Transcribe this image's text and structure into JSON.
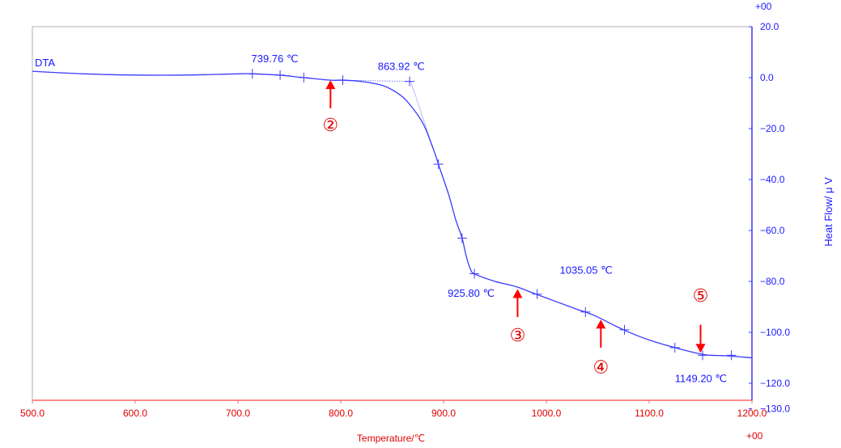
{
  "chart_data": {
    "type": "line",
    "series_label": "DTA",
    "xlabel": "Temperature/℃",
    "ylabel": "Heat Flow/ μ V",
    "x_exponent": "+00",
    "y_exponent": "+00",
    "xlim": [
      500,
      1200
    ],
    "ylim": [
      -130,
      20
    ],
    "xticks": [
      {
        "v": 500,
        "label": "500.0"
      },
      {
        "v": 600,
        "label": "600.0"
      },
      {
        "v": 700,
        "label": "700.0"
      },
      {
        "v": 800,
        "label": "800.0"
      },
      {
        "v": 900,
        "label": "900.0"
      },
      {
        "v": 1000,
        "label": "1000.0"
      },
      {
        "v": 1100,
        "label": "1100.0"
      },
      {
        "v": 1200,
        "label": "1200.0"
      }
    ],
    "yticks": [
      {
        "v": 20,
        "label": "20.0"
      },
      {
        "v": 0,
        "label": "0.0"
      },
      {
        "v": -20,
        "label": "−20.0"
      },
      {
        "v": -40,
        "label": "−40.0"
      },
      {
        "v": -60,
        "label": "−60.0"
      },
      {
        "v": -80,
        "label": "−80.0"
      },
      {
        "v": -100,
        "label": "−100.0"
      },
      {
        "v": -120,
        "label": "−120.0"
      },
      {
        "v": -130,
        "label": "−130.0"
      }
    ],
    "grid": false,
    "colors": {
      "axis_left_bottom": "#ff6666",
      "frame": "#b0b0b0",
      "curve": "#3a3aff",
      "arrow": "#ff0000"
    },
    "series": [
      {
        "x": [
          500,
          550,
          600,
          650,
          700,
          714,
          740,
          764,
          790,
          802,
          820,
          840,
          855,
          866,
          880,
          890,
          895,
          905,
          912,
          918,
          922,
          926,
          930,
          950,
          970,
          990,
          1010,
          1030,
          1038,
          1050,
          1075,
          1100,
          1125,
          1150,
          1160,
          1175,
          1200
        ],
        "y": [
          2.5,
          1.5,
          1.0,
          1.0,
          1.5,
          1.5,
          1.0,
          0,
          -1.0,
          -1.0,
          -1.5,
          -3,
          -6,
          -10,
          -18,
          -28,
          -34,
          -46,
          -56,
          -63,
          -70,
          -75,
          -77,
          -80,
          -82,
          -85,
          -88,
          -91,
          -92,
          -94,
          -99,
          -103,
          -106,
          -108.5,
          -109,
          -109.2,
          -110
        ]
      }
    ],
    "tick_marks": [
      {
        "x": 714,
        "y": 1.5
      },
      {
        "x": 741,
        "y": 1.0
      },
      {
        "x": 764,
        "y": 0
      },
      {
        "x": 802,
        "y": -1.0
      },
      {
        "x": 867,
        "y": -1.5
      },
      {
        "x": 895,
        "y": -34
      },
      {
        "x": 918,
        "y": -63
      },
      {
        "x": 930,
        "y": -77
      },
      {
        "x": 991,
        "y": -85
      },
      {
        "x": 1038,
        "y": -92
      },
      {
        "x": 1076,
        "y": -99
      },
      {
        "x": 1125,
        "y": -106
      },
      {
        "x": 1152,
        "y": -109
      },
      {
        "x": 1180,
        "y": -109
      }
    ],
    "baseline": {
      "x": [
        800,
        868
      ],
      "y": [
        -1.0,
        -1.5
      ]
    },
    "tangent": {
      "x": [
        868,
        895
      ],
      "y": [
        -1.5,
        -34
      ]
    },
    "annotations": [
      {
        "text": "739.76 ℃",
        "x": 713,
        "y": 6
      },
      {
        "text": "863.92 ℃",
        "x": 836,
        "y": 3
      },
      {
        "text": "925.80 ℃",
        "x": 904,
        "y": -86
      },
      {
        "text": "1035.05 ℃",
        "x": 1013,
        "y": -77
      },
      {
        "text": "1149.20 ℃",
        "x": 1125,
        "y": -119.5
      }
    ],
    "markers": [
      {
        "label": "②",
        "x": 790,
        "tip_y": -1,
        "tail_y": -12,
        "label_y": -21,
        "dir": "up"
      },
      {
        "label": "③",
        "x": 972,
        "tip_y": -83,
        "tail_y": -94,
        "label_y": -103.5,
        "dir": "up"
      },
      {
        "label": "④",
        "x": 1053,
        "tip_y": -95,
        "tail_y": -106,
        "label_y": -116,
        "dir": "up"
      },
      {
        "label": "⑤",
        "x": 1150,
        "tip_y": -108,
        "tail_y": -97,
        "label_y": -88,
        "dir": "down"
      }
    ]
  }
}
